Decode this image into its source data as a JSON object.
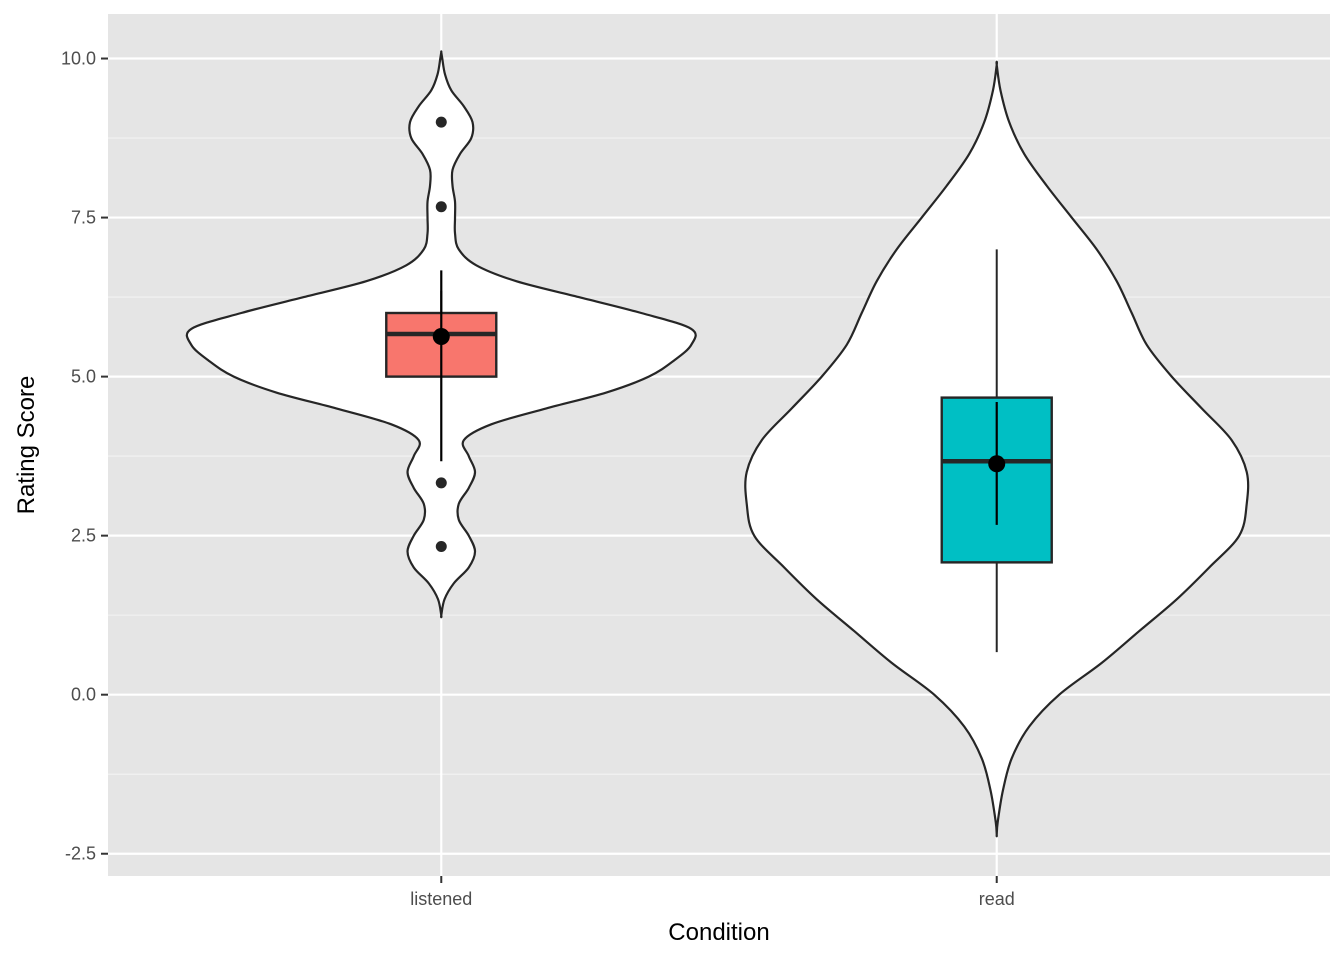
{
  "chart_data": {
    "type": "violin",
    "xlabel": "Condition",
    "ylabel": "Rating Score",
    "categories": [
      "listened",
      "read"
    ],
    "ylim": [
      -2.85,
      10.7
    ],
    "y_ticks": [
      -2.5,
      0.0,
      2.5,
      5.0,
      7.5,
      10.0
    ],
    "y_tick_labels": [
      "-2.5",
      "0.0",
      "2.5",
      "5.0",
      "7.5",
      "10.0"
    ],
    "grid": true,
    "panel_background": "#e5e5e5",
    "groups": [
      {
        "category": "listened",
        "fill": "#f8766d",
        "box": {
          "q1": 5.0,
          "median": 5.67,
          "q3": 6.0,
          "whisker_low": 5.0,
          "whisker_high": 6.35
        },
        "mean": 5.63,
        "error_bar": [
          3.67,
          6.67
        ],
        "outliers": [
          9.0,
          7.67,
          3.33,
          2.33
        ],
        "violin_range": [
          1.25,
          10.1
        ],
        "violin_profile": [
          [
            1.25,
            0.0
          ],
          [
            1.5,
            0.013
          ],
          [
            1.75,
            0.05
          ],
          [
            2.0,
            0.11
          ],
          [
            2.25,
            0.135
          ],
          [
            2.5,
            0.11
          ],
          [
            2.75,
            0.07
          ],
          [
            3.0,
            0.07
          ],
          [
            3.25,
            0.11
          ],
          [
            3.5,
            0.135
          ],
          [
            3.75,
            0.11
          ],
          [
            4.0,
            0.09
          ],
          [
            4.25,
            0.2
          ],
          [
            4.5,
            0.42
          ],
          [
            4.75,
            0.66
          ],
          [
            5.0,
            0.83
          ],
          [
            5.25,
            0.93
          ],
          [
            5.5,
            1.0
          ],
          [
            5.75,
            1.0
          ],
          [
            6.0,
            0.8
          ],
          [
            6.25,
            0.55
          ],
          [
            6.5,
            0.3
          ],
          [
            6.75,
            0.14
          ],
          [
            7.0,
            0.07
          ],
          [
            7.25,
            0.055
          ],
          [
            7.5,
            0.055
          ],
          [
            7.75,
            0.055
          ],
          [
            8.0,
            0.045
          ],
          [
            8.25,
            0.045
          ],
          [
            8.5,
            0.075
          ],
          [
            8.75,
            0.12
          ],
          [
            9.0,
            0.125
          ],
          [
            9.25,
            0.09
          ],
          [
            9.5,
            0.04
          ],
          [
            9.75,
            0.015
          ],
          [
            10.0,
            0.004
          ],
          [
            10.1,
            0.0
          ]
        ]
      },
      {
        "category": "read",
        "fill": "#00bfc4",
        "box": {
          "q1": 2.08,
          "median": 3.67,
          "q3": 4.67,
          "whisker_low": 0.67,
          "whisker_high": 7.0
        },
        "mean": 3.63,
        "error_bar": [
          2.67,
          4.6
        ],
        "outliers": [],
        "violin_range": [
          -2.2,
          9.9
        ],
        "violin_profile": [
          [
            -2.2,
            0.0
          ],
          [
            -2.0,
            0.004
          ],
          [
            -1.5,
            0.025
          ],
          [
            -1.0,
            0.06
          ],
          [
            -0.5,
            0.13
          ],
          [
            0.0,
            0.25
          ],
          [
            0.5,
            0.42
          ],
          [
            1.0,
            0.57
          ],
          [
            1.5,
            0.72
          ],
          [
            2.0,
            0.85
          ],
          [
            2.5,
            0.97
          ],
          [
            3.0,
            1.0
          ],
          [
            3.5,
            1.0
          ],
          [
            4.0,
            0.94
          ],
          [
            4.5,
            0.82
          ],
          [
            5.0,
            0.7
          ],
          [
            5.5,
            0.6
          ],
          [
            6.0,
            0.54
          ],
          [
            6.5,
            0.48
          ],
          [
            7.0,
            0.4
          ],
          [
            7.5,
            0.3
          ],
          [
            8.0,
            0.2
          ],
          [
            8.5,
            0.11
          ],
          [
            9.0,
            0.05
          ],
          [
            9.5,
            0.015
          ],
          [
            9.9,
            0.0
          ]
        ]
      }
    ]
  }
}
